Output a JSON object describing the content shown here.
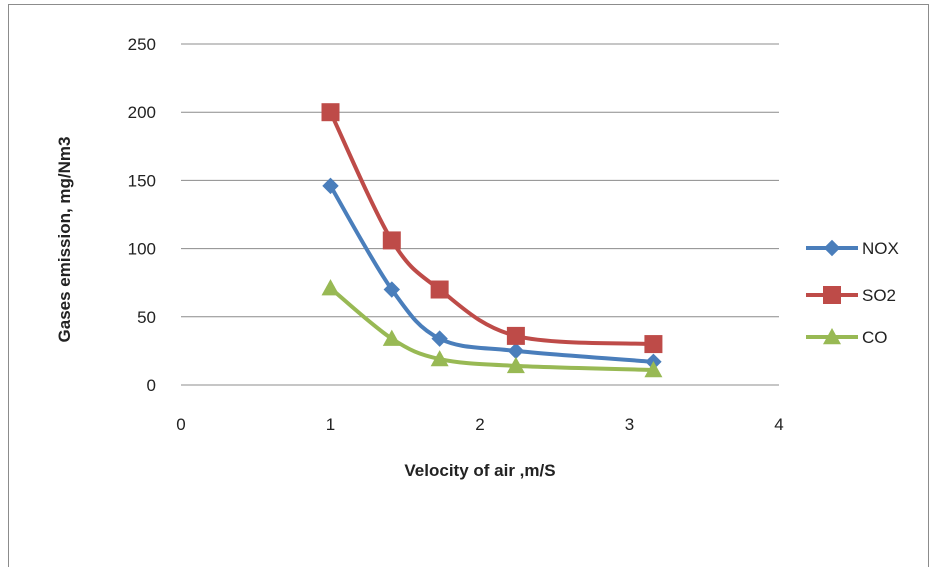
{
  "chart_data": {
    "type": "scatter",
    "xlabel": "Velocity of air ,m/S",
    "ylabel": "Gases emission, mg/Nm3",
    "xlim": [
      0,
      4
    ],
    "ylim": [
      0,
      250
    ],
    "x_ticks": [
      "0",
      "1",
      "2",
      "3",
      "4"
    ],
    "y_ticks": [
      "0",
      "50",
      "100",
      "150",
      "200",
      "250"
    ],
    "grid": "horizontal",
    "legend_position": "right",
    "series": [
      {
        "name": "NOX",
        "color": "#4a7ebb",
        "marker": "diamond",
        "x": [
          1.0,
          1.41,
          1.73,
          2.24,
          3.16
        ],
        "y": [
          146,
          70,
          34,
          25,
          17
        ]
      },
      {
        "name": "SO2",
        "color": "#be4b48",
        "marker": "square",
        "x": [
          1.0,
          1.41,
          1.73,
          2.24,
          3.16
        ],
        "y": [
          200,
          106,
          70,
          36,
          30
        ]
      },
      {
        "name": "CO",
        "color": "#98b954",
        "marker": "triangle",
        "x": [
          1.0,
          1.41,
          1.73,
          2.24,
          3.16
        ],
        "y": [
          71,
          34,
          19,
          14,
          11
        ]
      }
    ]
  }
}
